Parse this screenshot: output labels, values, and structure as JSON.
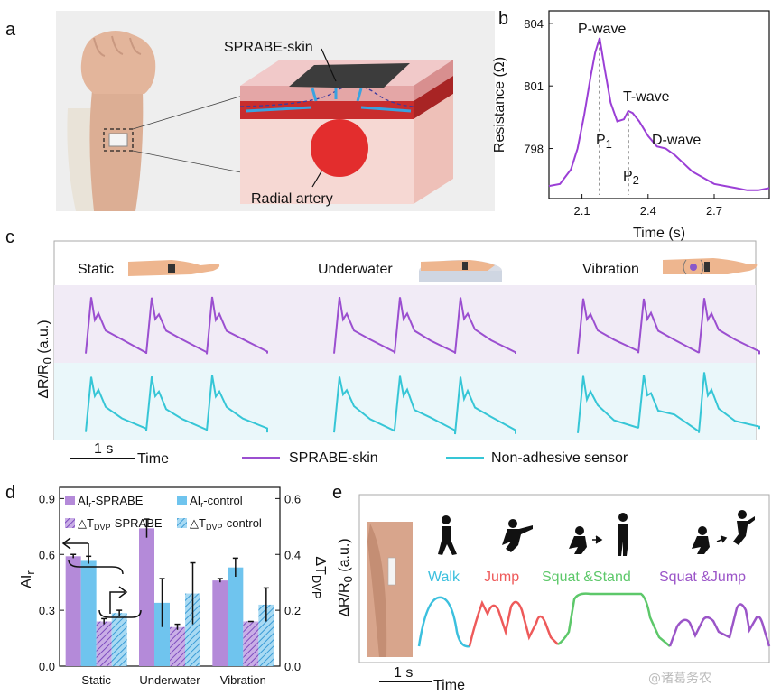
{
  "panels": {
    "a": "a",
    "b": "b",
    "c": "c",
    "d": "d",
    "e": "e"
  },
  "panel_a": {
    "skin_label": "SPRABE-skin",
    "artery_label": "Radial artery"
  },
  "chart_data": [
    {
      "type": "line",
      "panel": "b",
      "xlabel": "Time (s)",
      "ylabel": "Resistance (Ω)",
      "xticks": [
        "2.1",
        "2.4",
        "2.7"
      ],
      "yticks": [
        "798",
        "801",
        "804"
      ],
      "xlim": [
        1.95,
        2.95
      ],
      "ylim": [
        795.6,
        804.6
      ],
      "x": [
        1.95,
        2.0,
        2.05,
        2.08,
        2.11,
        2.14,
        2.16,
        2.18,
        2.2,
        2.23,
        2.26,
        2.29,
        2.31,
        2.33,
        2.36,
        2.4,
        2.44,
        2.48,
        2.52,
        2.56,
        2.6,
        2.65,
        2.7,
        2.75,
        2.8,
        2.85,
        2.9,
        2.95
      ],
      "y": [
        796.2,
        796.3,
        797.0,
        798.0,
        799.6,
        801.5,
        802.6,
        803.3,
        802.0,
        800.2,
        799.3,
        799.4,
        799.8,
        799.7,
        799.3,
        798.6,
        798.1,
        798.0,
        797.7,
        797.3,
        796.9,
        796.6,
        796.3,
        796.2,
        796.1,
        796.0,
        796.0,
        796.1
      ],
      "annotations": {
        "p": "P-wave",
        "t": "T-wave",
        "d": "D-wave",
        "p1": "P",
        "p1_sub": "1",
        "p2": "P",
        "p2_sub": "2"
      },
      "color": "#9b3fd6"
    },
    {
      "type": "line",
      "panel": "c",
      "ylabel_main": "ΔR/R",
      "ylabel_sub": "0",
      "ylabel_tail": " (a.u.)",
      "conditions": [
        "Static",
        "Underwater",
        "Vibration"
      ],
      "scale_bar": "1 s",
      "time_label": "Time",
      "series": [
        {
          "name": "SPRABE-skin",
          "color": "#9b4fd0"
        },
        {
          "name": "Non-adhesive sensor",
          "color": "#36c6d6"
        }
      ]
    },
    {
      "type": "bar",
      "panel": "d",
      "categories": [
        "Static",
        "Underwater",
        "Vibration"
      ],
      "ylabel_left": "AI",
      "ylabel_left_sub": "r",
      "ylabel_right": "ΔT",
      "ylabel_right_sub": "DVP",
      "ylim_left": [
        0.0,
        0.96
      ],
      "ylim_right": [
        0.0,
        0.64
      ],
      "yticks_left": [
        "0.0",
        "0.3",
        "0.6",
        "0.9"
      ],
      "yticks_right": [
        "0.0",
        "0.2",
        "0.4",
        "0.6"
      ],
      "series": [
        {
          "name": "AIr-SPRABE",
          "legend_main": "AI",
          "legend_sub": "r",
          "legend_tail": "-SPRABE",
          "axis": "left",
          "values": [
            0.59,
            0.74,
            0.46
          ],
          "errors": [
            0.01,
            0.05,
            0.01
          ],
          "color": "#b48ad9",
          "hatched": false
        },
        {
          "name": "AIr-control",
          "legend_main": "AI",
          "legend_sub": "r",
          "legend_tail": "-control",
          "axis": "left",
          "values": [
            0.57,
            0.34,
            0.53
          ],
          "errors": [
            0.02,
            0.13,
            0.05
          ],
          "color": "#6fc4ee",
          "hatched": false
        },
        {
          "name": "ΔTDVP-SPRABE",
          "legend_main": "△T",
          "legend_sub": "DVP",
          "legend_tail": "-SPRABE",
          "axis": "right",
          "values": [
            0.16,
            0.14,
            0.16
          ],
          "errors": [
            0.01,
            0.01,
            0.0
          ],
          "color": "#9b6cd0",
          "hatched": true
        },
        {
          "name": "ΔTDVP-control",
          "legend_main": "△T",
          "legend_sub": "DVP",
          "legend_tail": "-control",
          "axis": "right",
          "values": [
            0.19,
            0.26,
            0.22
          ],
          "errors": [
            0.01,
            0.11,
            0.06
          ],
          "color": "#5cb8e8",
          "hatched": true
        }
      ]
    },
    {
      "type": "line",
      "panel": "e",
      "ylabel_main": "ΔR/R",
      "ylabel_sub": "0",
      "ylabel_tail": " (a.u.)",
      "segments": [
        {
          "name": "Walk",
          "color": "#3cc0de"
        },
        {
          "name": "Jump",
          "color": "#ee5a5a"
        },
        {
          "name": "Squat &Stand",
          "color": "#5dc86a"
        },
        {
          "name": "Squat &Jump",
          "color": "#9b55c8"
        }
      ],
      "scale_bar": "1 s",
      "time_label": "Time"
    }
  ],
  "watermark": "@诸葛务农"
}
